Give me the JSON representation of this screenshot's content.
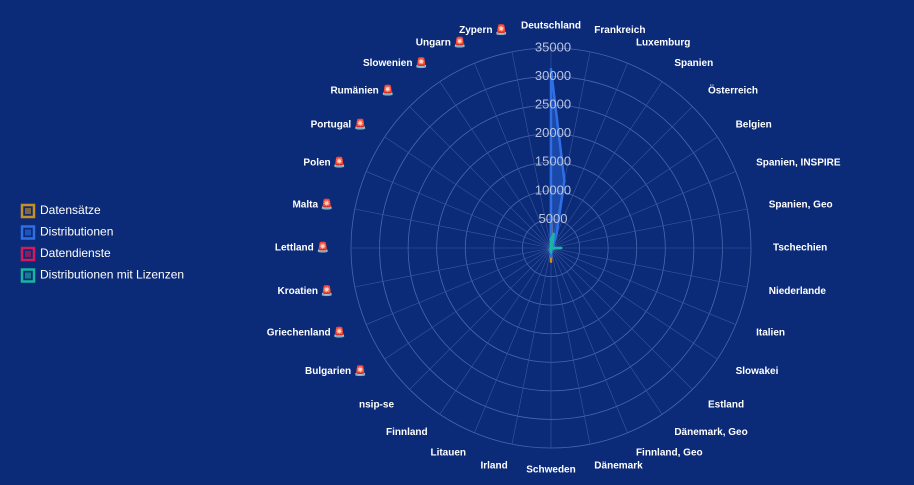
{
  "chart_data": {
    "type": "radar",
    "categories": [
      "Deutschland",
      "Frankreich",
      "Luxemburg",
      "Spanien",
      "Österreich",
      "Belgien",
      "Spanien, INSPIRE",
      "Spanien, Geo",
      "Tschechien",
      "Niederlande",
      "Italien",
      "Slowakei",
      "Estland",
      "Dänemark, Geo",
      "Finnland, Geo",
      "Dänemark",
      "Schweden",
      "Irland",
      "Litauen",
      "Finnland",
      "nsip-se",
      "Bulgarien 🚨",
      "Griechenland 🚨",
      "Kroatien 🚨",
      "Lettland 🚨",
      "Malta 🚨",
      "Polen 🚨",
      "Portugal 🚨",
      "Rumänien 🚨",
      "Slowenien 🚨",
      "Ungarn 🚨",
      "Zypern 🚨"
    ],
    "rlim": [
      0,
      35000
    ],
    "rticks": [
      5000,
      10000,
      15000,
      20000,
      25000,
      30000,
      35000
    ],
    "series": [
      {
        "name": "Datensätze",
        "color": "#c8901f",
        "values": [
          6000,
          800,
          300,
          400,
          300,
          300,
          200,
          200,
          300,
          300,
          300,
          200,
          200,
          200,
          200,
          300,
          2400,
          200,
          200,
          300,
          100,
          100,
          100,
          100,
          100,
          100,
          100,
          100,
          100,
          100,
          100,
          100
        ]
      },
      {
        "name": "Distributionen",
        "color": "#2f6fe6",
        "values": [
          31300,
          12000,
          2500,
          800,
          600,
          600,
          400,
          400,
          700,
          500,
          500,
          300,
          300,
          300,
          300,
          500,
          1500,
          300,
          300,
          500,
          200,
          100,
          100,
          100,
          100,
          100,
          100,
          100,
          100,
          100,
          100,
          100
        ]
      },
      {
        "name": "Datendienste",
        "color": "#d11b5a",
        "values": [
          300,
          100,
          50,
          50,
          50,
          50,
          50,
          50,
          50,
          50,
          50,
          50,
          50,
          50,
          50,
          50,
          50,
          50,
          50,
          50,
          50,
          50,
          50,
          50,
          50,
          50,
          50,
          50,
          50,
          50,
          50,
          50
        ]
      },
      {
        "name": "Distributionen mit Lizenzen",
        "color": "#18b5a0",
        "values": [
          1500,
          2500,
          500,
          300,
          200,
          200,
          100,
          100,
          1800,
          200,
          200,
          100,
          100,
          100,
          100,
          200,
          800,
          100,
          100,
          200,
          50,
          50,
          50,
          50,
          50,
          50,
          50,
          50,
          50,
          50,
          50,
          50
        ]
      }
    ]
  }
}
